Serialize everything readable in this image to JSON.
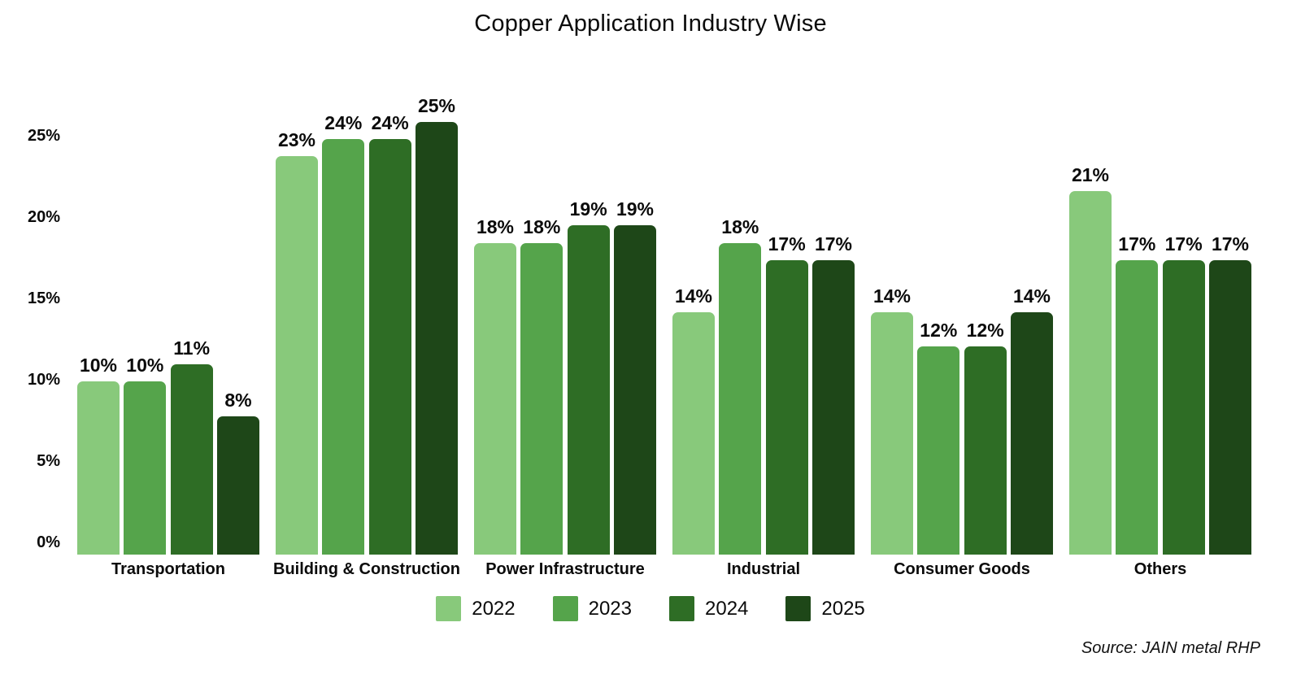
{
  "source_note": "Source: JAIN metal RHP",
  "chart_data": {
    "type": "bar",
    "title": "Copper Application Industry Wise",
    "categories": [
      "Transportation",
      "Building & Construction",
      "Power Infrastructure",
      "Industrial",
      "Consumer Goods",
      "Others"
    ],
    "series": [
      {
        "name": "2022",
        "color": "#88C97B",
        "values": [
          10,
          23,
          18,
          14,
          14,
          21
        ]
      },
      {
        "name": "2023",
        "color": "#55A44B",
        "values": [
          10,
          24,
          18,
          18,
          12,
          17
        ]
      },
      {
        "name": "2024",
        "color": "#2E6D25",
        "values": [
          11,
          24,
          19,
          17,
          12,
          17
        ]
      },
      {
        "name": "2025",
        "color": "#1E4718",
        "values": [
          8,
          25,
          19,
          17,
          14,
          17
        ]
      }
    ],
    "value_suffix": "%",
    "yticks": [
      {
        "value": 0,
        "label": "0%"
      },
      {
        "value": 5,
        "label": "5%"
      },
      {
        "value": 10,
        "label": "10%"
      },
      {
        "value": 15,
        "label": "15%"
      },
      {
        "value": 20,
        "label": "20%"
      },
      {
        "value": 25,
        "label": "25%"
      }
    ],
    "ylim": [
      0,
      25
    ],
    "grid": false,
    "legend_position": "bottom",
    "background": "#ffffff"
  }
}
